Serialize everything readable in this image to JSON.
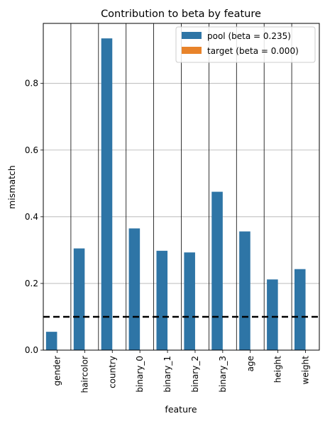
{
  "chart_data": {
    "type": "bar",
    "title": "Contribution to beta by feature",
    "xlabel": "feature",
    "ylabel": "mismatch",
    "categories": [
      "gender",
      "haircolor",
      "country",
      "binary_0",
      "binary_1",
      "binary_2",
      "binary_3",
      "age",
      "height",
      "weight"
    ],
    "series": [
      {
        "name": "pool (beta = 0.235)",
        "color": "#2e75a6",
        "values": [
          0.055,
          0.305,
          0.935,
          0.365,
          0.298,
          0.293,
          0.475,
          0.356,
          0.212,
          0.243
        ]
      },
      {
        "name": "target (beta = 0.000)",
        "color": "#e8832a",
        "values": [
          0,
          0,
          0,
          0,
          0,
          0,
          0,
          0,
          0,
          0
        ]
      }
    ],
    "ylim": [
      0,
      0.98
    ],
    "yticks": [
      0.0,
      0.2,
      0.4,
      0.6,
      0.8
    ],
    "ytick_labels": [
      "0.0",
      "0.2",
      "0.4",
      "0.6",
      "0.8"
    ],
    "threshold": 0.1,
    "grid": "horizontal",
    "legend_position": "top-right"
  }
}
